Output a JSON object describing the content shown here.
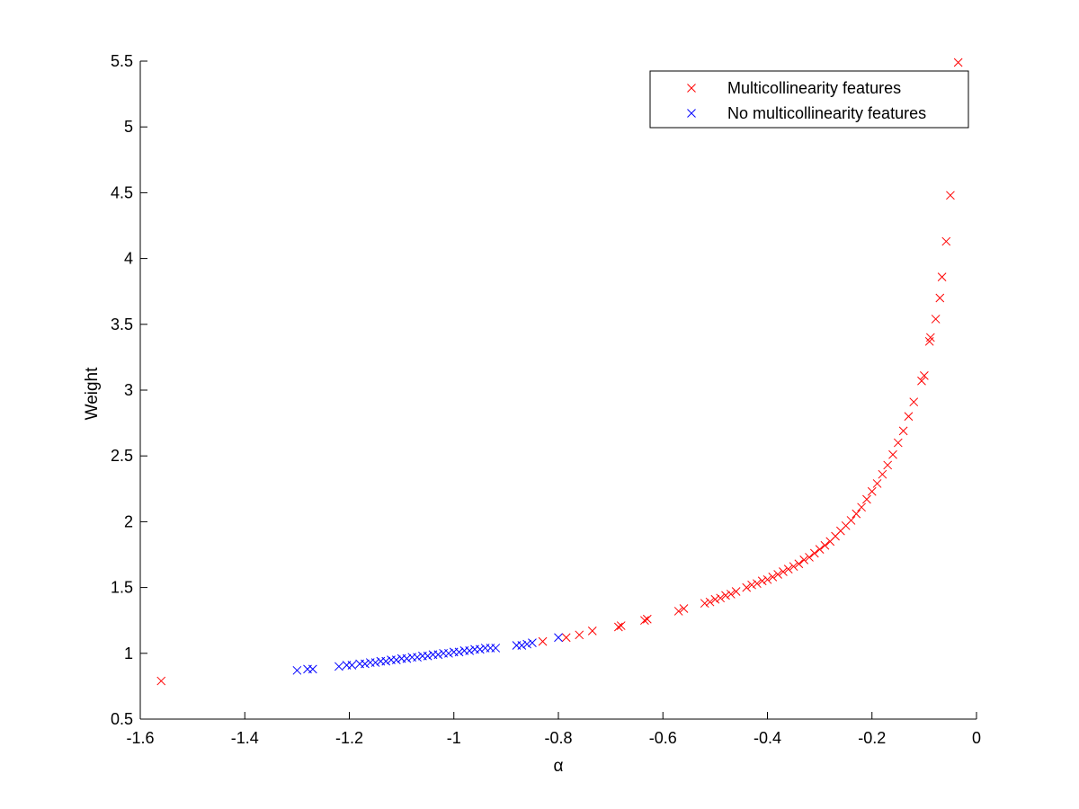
{
  "chart_data": {
    "type": "scatter",
    "xlabel": "α",
    "ylabel": "Weight",
    "xlim": [
      -1.6,
      0
    ],
    "ylim": [
      0.5,
      5.5
    ],
    "xticks": [
      -1.6,
      -1.4,
      -1.2,
      -1,
      -0.8,
      -0.6,
      -0.4,
      -0.2,
      0
    ],
    "xtick_labels": [
      "-1.6",
      "-1.4",
      "-1.2",
      "-1",
      "-0.8",
      "-0.6",
      "-0.4",
      "-0.2",
      "0"
    ],
    "yticks": [
      0.5,
      1,
      1.5,
      2,
      2.5,
      3,
      3.5,
      4,
      4.5,
      5,
      5.5
    ],
    "ytick_labels": [
      "0.5",
      "1",
      "1.5",
      "2",
      "2.5",
      "3",
      "3.5",
      "4",
      "4.5",
      "5",
      "5.5"
    ],
    "grid": false,
    "legend_position": "top-right",
    "marker": "x",
    "series": [
      {
        "name": "Multicollinearity features",
        "color": "#ff0000",
        "points": [
          [
            -1.56,
            0.79
          ],
          [
            -0.83,
            1.09
          ],
          [
            -0.785,
            1.12
          ],
          [
            -0.76,
            1.14
          ],
          [
            -0.735,
            1.17
          ],
          [
            -0.685,
            1.2
          ],
          [
            -0.68,
            1.21
          ],
          [
            -0.635,
            1.25
          ],
          [
            -0.63,
            1.26
          ],
          [
            -0.57,
            1.32
          ],
          [
            -0.56,
            1.34
          ],
          [
            -0.52,
            1.38
          ],
          [
            -0.51,
            1.39
          ],
          [
            -0.5,
            1.41
          ],
          [
            -0.49,
            1.42
          ],
          [
            -0.48,
            1.44
          ],
          [
            -0.47,
            1.45
          ],
          [
            -0.46,
            1.47
          ],
          [
            -0.44,
            1.5
          ],
          [
            -0.43,
            1.52
          ],
          [
            -0.42,
            1.53
          ],
          [
            -0.41,
            1.55
          ],
          [
            -0.4,
            1.56
          ],
          [
            -0.39,
            1.58
          ],
          [
            -0.38,
            1.6
          ],
          [
            -0.37,
            1.62
          ],
          [
            -0.36,
            1.64
          ],
          [
            -0.35,
            1.66
          ],
          [
            -0.34,
            1.68
          ],
          [
            -0.33,
            1.71
          ],
          [
            -0.32,
            1.73
          ],
          [
            -0.31,
            1.76
          ],
          [
            -0.3,
            1.79
          ],
          [
            -0.29,
            1.82
          ],
          [
            -0.28,
            1.85
          ],
          [
            -0.27,
            1.89
          ],
          [
            -0.26,
            1.93
          ],
          [
            -0.25,
            1.97
          ],
          [
            -0.24,
            2.01
          ],
          [
            -0.23,
            2.06
          ],
          [
            -0.22,
            2.11
          ],
          [
            -0.21,
            2.17
          ],
          [
            -0.2,
            2.23
          ],
          [
            -0.19,
            2.29
          ],
          [
            -0.18,
            2.36
          ],
          [
            -0.17,
            2.43
          ],
          [
            -0.16,
            2.51
          ],
          [
            -0.15,
            2.6
          ],
          [
            -0.14,
            2.69
          ],
          [
            -0.13,
            2.8
          ],
          [
            -0.12,
            2.91
          ],
          [
            -0.105,
            3.07
          ],
          [
            -0.1,
            3.11
          ],
          [
            -0.09,
            3.37
          ],
          [
            -0.088,
            3.4
          ],
          [
            -0.078,
            3.54
          ],
          [
            -0.07,
            3.7
          ],
          [
            -0.066,
            3.86
          ],
          [
            -0.058,
            4.13
          ],
          [
            -0.05,
            4.48
          ],
          [
            -0.035,
            5.49
          ]
        ]
      },
      {
        "name": "No multicollinearity features",
        "color": "#0000ff",
        "points": [
          [
            -1.3,
            0.87
          ],
          [
            -1.28,
            0.88
          ],
          [
            -1.27,
            0.88
          ],
          [
            -1.22,
            0.9
          ],
          [
            -1.205,
            0.91
          ],
          [
            -1.195,
            0.91
          ],
          [
            -1.18,
            0.92
          ],
          [
            -1.17,
            0.92
          ],
          [
            -1.16,
            0.93
          ],
          [
            -1.15,
            0.93
          ],
          [
            -1.14,
            0.94
          ],
          [
            -1.13,
            0.94
          ],
          [
            -1.12,
            0.95
          ],
          [
            -1.11,
            0.95
          ],
          [
            -1.1,
            0.96
          ],
          [
            -1.09,
            0.96
          ],
          [
            -1.08,
            0.97
          ],
          [
            -1.07,
            0.97
          ],
          [
            -1.06,
            0.98
          ],
          [
            -1.05,
            0.98
          ],
          [
            -1.04,
            0.99
          ],
          [
            -1.03,
            0.99
          ],
          [
            -1.02,
            1.0
          ],
          [
            -1.01,
            1.0
          ],
          [
            -1.0,
            1.01
          ],
          [
            -0.99,
            1.01
          ],
          [
            -0.98,
            1.02
          ],
          [
            -0.97,
            1.02
          ],
          [
            -0.96,
            1.03
          ],
          [
            -0.95,
            1.03
          ],
          [
            -0.94,
            1.04
          ],
          [
            -0.93,
            1.04
          ],
          [
            -0.92,
            1.04
          ],
          [
            -0.88,
            1.06
          ],
          [
            -0.87,
            1.06
          ],
          [
            -0.86,
            1.07
          ],
          [
            -0.85,
            1.08
          ],
          [
            -0.8,
            1.12
          ]
        ]
      }
    ]
  }
}
